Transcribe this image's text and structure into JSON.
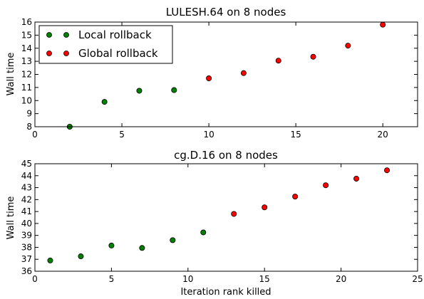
{
  "chart_data": [
    {
      "type": "scatter",
      "title": "LULESH.64 on 8 nodes",
      "xlabel": "",
      "ylabel": "Wall time",
      "xlim": [
        0,
        22
      ],
      "ylim": [
        8,
        16
      ],
      "xticks": [
        0,
        5,
        10,
        15,
        20
      ],
      "yticks": [
        8,
        9,
        10,
        11,
        12,
        13,
        14,
        15,
        16
      ],
      "legend": "top-left",
      "series": [
        {
          "name": "Local rollback",
          "color": "#008000",
          "x": [
            2,
            4,
            6,
            8
          ],
          "y": [
            8.0,
            9.9,
            10.75,
            10.8
          ]
        },
        {
          "name": "Global rollback",
          "color": "#ff0000",
          "x": [
            10,
            12,
            14,
            16,
            18,
            20
          ],
          "y": [
            11.7,
            12.1,
            13.05,
            13.35,
            14.2,
            15.8
          ]
        }
      ]
    },
    {
      "type": "scatter",
      "title": "cg.D.16 on 8 nodes",
      "xlabel": "Iteration rank killed",
      "ylabel": "Wall time",
      "xlim": [
        0,
        25
      ],
      "ylim": [
        36,
        45
      ],
      "xticks": [
        0,
        5,
        10,
        15,
        20,
        25
      ],
      "yticks": [
        36,
        37,
        38,
        39,
        40,
        41,
        42,
        43,
        44,
        45
      ],
      "series": [
        {
          "name": "Local rollback",
          "color": "#008000",
          "x": [
            1,
            3,
            5,
            7,
            9,
            11
          ],
          "y": [
            36.9,
            37.25,
            38.15,
            37.95,
            38.6,
            39.25
          ]
        },
        {
          "name": "Global rollback",
          "color": "#ff0000",
          "x": [
            13,
            15,
            17,
            19,
            21,
            23
          ],
          "y": [
            40.8,
            41.35,
            42.25,
            43.2,
            43.75,
            44.45
          ]
        }
      ]
    }
  ]
}
